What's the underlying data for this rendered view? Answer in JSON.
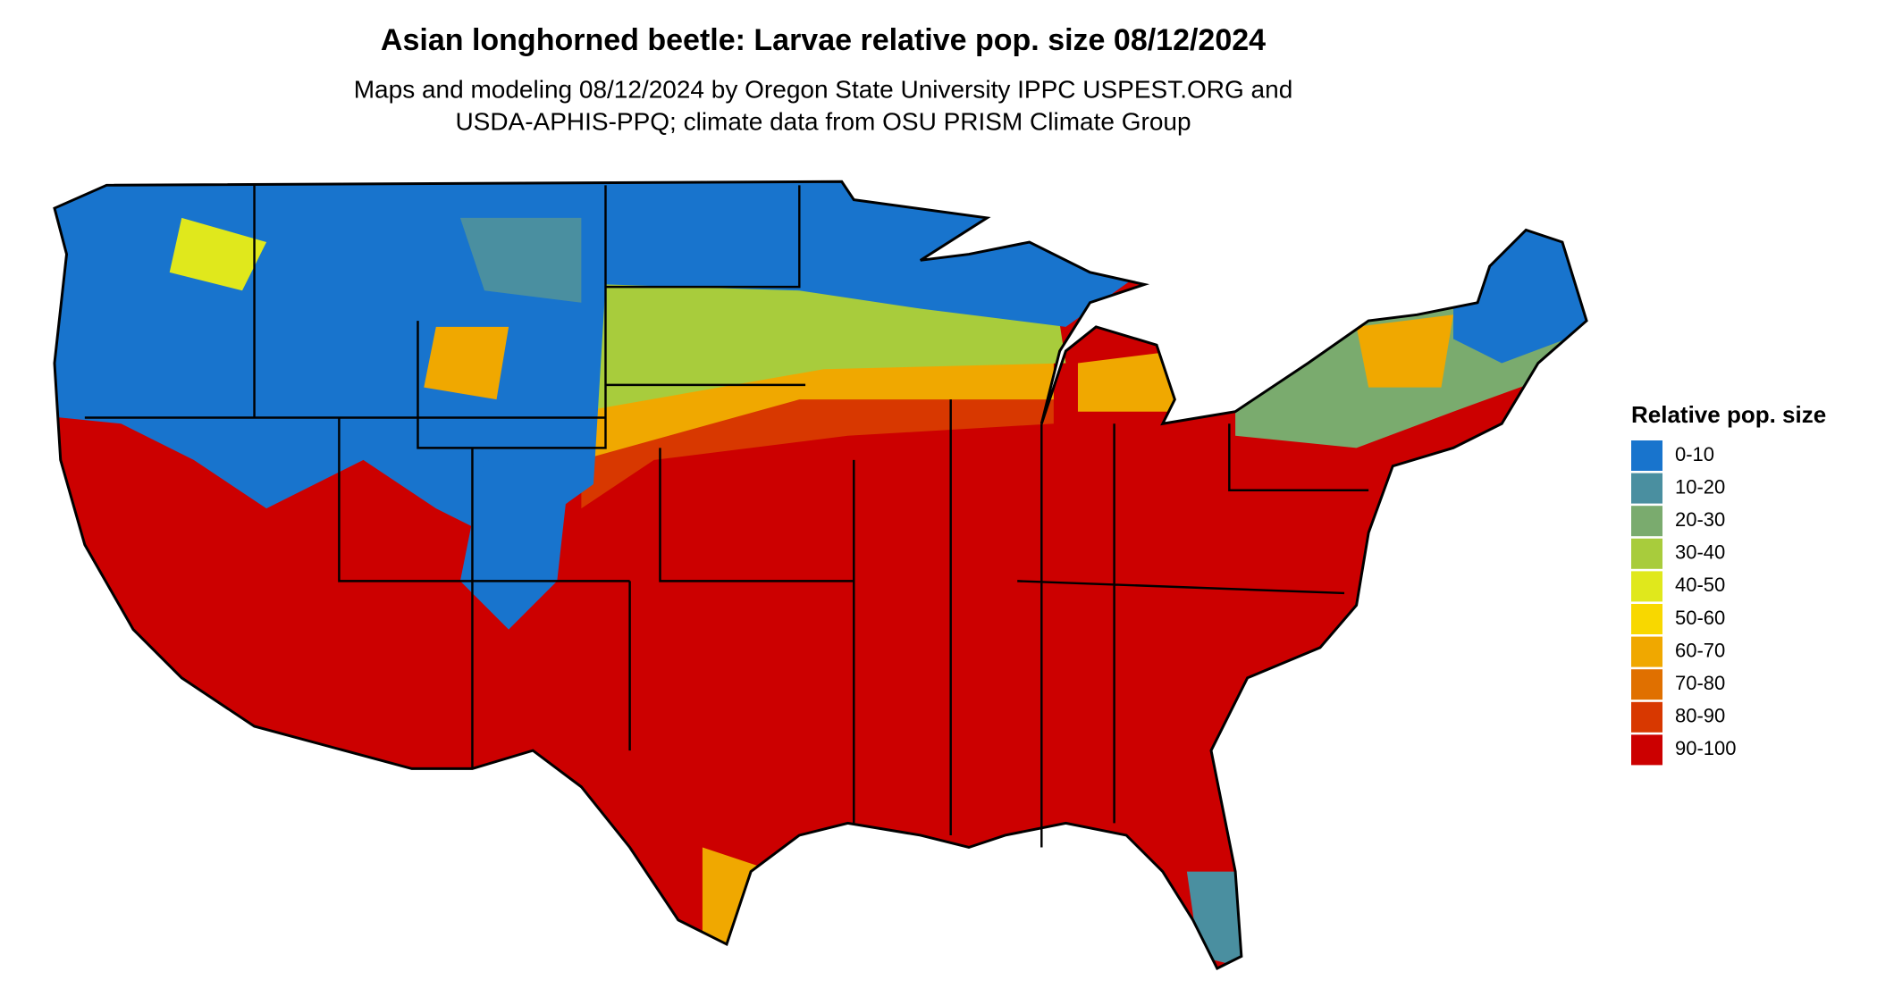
{
  "title": "Asian longhorned beetle: Larvae relative pop. size 08/12/2024",
  "subtitle": [
    "Maps and modeling 08/12/2024 by Oregon State University IPPC USPEST.ORG and",
    "USDA-APHIS-PPQ; climate data from OSU PRISM Climate Group"
  ],
  "legend": {
    "title": "Relative pop. size",
    "items": [
      {
        "label": "0-10",
        "color": "#1874cd"
      },
      {
        "label": "10-20",
        "color": "#4a8fa0"
      },
      {
        "label": "20-30",
        "color": "#7aab6e"
      },
      {
        "label": "30-40",
        "color": "#a8cc3c"
      },
      {
        "label": "40-50",
        "color": "#e0e81c"
      },
      {
        "label": "50-60",
        "color": "#f8d800"
      },
      {
        "label": "60-70",
        "color": "#f0a800"
      },
      {
        "label": "70-80",
        "color": "#e07000"
      },
      {
        "label": "80-90",
        "color": "#d83800"
      },
      {
        "label": "90-100",
        "color": "#cc0000"
      }
    ]
  }
}
